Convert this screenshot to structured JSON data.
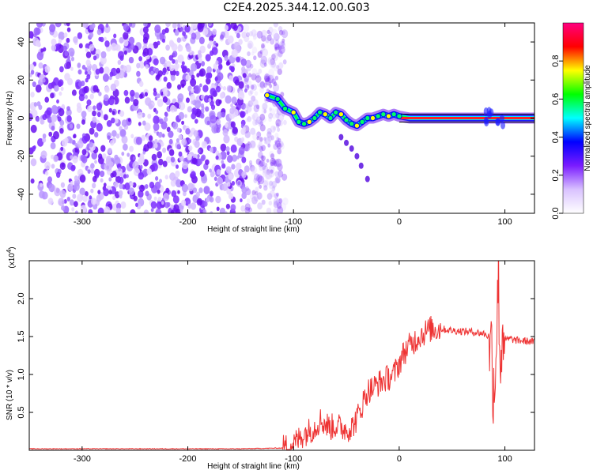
{
  "title": "C2E4.2025.344.12.00.G03",
  "chart_data": [
    {
      "type": "heatmap",
      "xlabel": "Height of straight line (km)",
      "ylabel": "Frequency (Hz)",
      "xlim": [
        -350,
        128
      ],
      "ylim": [
        -50,
        50
      ],
      "x_ticks": [
        -300,
        -200,
        -100,
        0,
        100
      ],
      "x_tick_labels": [
        "-300",
        "-200",
        "-100",
        "0",
        "100"
      ],
      "y_ticks": [
        -40,
        -20,
        0,
        20,
        40
      ],
      "y_tick_labels": [
        "-40",
        "-20",
        "0",
        "20",
        "40"
      ],
      "colorbar": {
        "label": "Normalized spectral amplitude",
        "range": [
          0,
          1
        ],
        "ticks": [
          0.0,
          0.2,
          0.4,
          0.6,
          0.8
        ],
        "tick_labels": [
          "0.0",
          "0.2",
          "0.4",
          "0.6",
          "0.8"
        ],
        "colors": [
          "#ffffff",
          "#d9c2ff",
          "#7a1cff",
          "#0000ff",
          "#00ffff",
          "#00ff00",
          "#ffff00",
          "#ff0000",
          "#ff0080"
        ]
      },
      "noise_region_x": [
        -350,
        -115
      ],
      "main_signal_track": [
        {
          "x": -125,
          "y": 12
        },
        {
          "x": -115,
          "y": 10
        },
        {
          "x": -108,
          "y": 5
        },
        {
          "x": -100,
          "y": 3
        },
        {
          "x": -95,
          "y": -2
        },
        {
          "x": -90,
          "y": -3
        },
        {
          "x": -85,
          "y": -2
        },
        {
          "x": -80,
          "y": 0
        },
        {
          "x": -75,
          "y": 3
        },
        {
          "x": -70,
          "y": 2
        },
        {
          "x": -65,
          "y": 0
        },
        {
          "x": -60,
          "y": 3
        },
        {
          "x": -55,
          "y": 2
        },
        {
          "x": -50,
          "y": -1
        },
        {
          "x": -45,
          "y": -3
        },
        {
          "x": -40,
          "y": -4
        },
        {
          "x": -35,
          "y": -2
        },
        {
          "x": -30,
          "y": 0
        },
        {
          "x": -25,
          "y": 0
        },
        {
          "x": -20,
          "y": 1
        },
        {
          "x": -15,
          "y": 2
        },
        {
          "x": -10,
          "y": 1
        },
        {
          "x": -5,
          "y": 2
        },
        {
          "x": 0,
          "y": 1
        },
        {
          "x": 10,
          "y": 0
        },
        {
          "x": 50,
          "y": 0
        },
        {
          "x": 85,
          "y": 0
        },
        {
          "x": 95,
          "y": 0
        },
        {
          "x": 128,
          "y": 0
        }
      ],
      "secondary_branch": [
        {
          "x": -55,
          "y": -10
        },
        {
          "x": -50,
          "y": -13
        },
        {
          "x": -45,
          "y": -16
        },
        {
          "x": -40,
          "y": -20
        },
        {
          "x": -36,
          "y": -25
        },
        {
          "x": -30,
          "y": -32
        }
      ]
    },
    {
      "type": "line",
      "xlabel": "Height of straight line (km)",
      "ylabel": "SNR (10 * v/v)",
      "y_multiplier": "(x10",
      "y_multiplier_exp": "4",
      "y_multiplier_close": ")",
      "xlim": [
        -350,
        128
      ],
      "ylim": [
        0,
        2.5
      ],
      "x_ticks": [
        -300,
        -200,
        -100,
        0,
        100
      ],
      "x_tick_labels": [
        "-300",
        "-200",
        "-100",
        "0",
        "100"
      ],
      "y_ticks": [
        0.5,
        1.0,
        1.5,
        2.0
      ],
      "y_tick_labels": [
        "0.5",
        "1.0",
        "1.5",
        "2.0"
      ],
      "color": "#ee3333",
      "series": [
        {
          "x": [
            -350,
            -300,
            -250,
            -200,
            -150,
            -110,
            -100,
            -95,
            -90,
            -85,
            -80,
            -75,
            -70,
            -65,
            -60,
            -55,
            -50,
            -45,
            -40,
            -35,
            -30,
            -25,
            -20,
            -15,
            -10,
            -5,
            0,
            5,
            10,
            15,
            20,
            25,
            30,
            40,
            50,
            60,
            70,
            75,
            80,
            85,
            88,
            90,
            92,
            94,
            96,
            98,
            100,
            105,
            110,
            120,
            128
          ],
          "y": [
            0.02,
            0.02,
            0.02,
            0.02,
            0.02,
            0.03,
            0.08,
            0.15,
            0.22,
            0.26,
            0.3,
            0.4,
            0.35,
            0.3,
            0.33,
            0.3,
            0.28,
            0.3,
            0.42,
            0.6,
            0.78,
            0.82,
            0.88,
            0.92,
            0.96,
            1.0,
            1.15,
            1.3,
            1.38,
            1.45,
            1.52,
            1.56,
            1.6,
            1.6,
            1.58,
            1.57,
            1.56,
            1.55,
            1.54,
            1.5,
            1.2,
            0.8,
            1.6,
            2.3,
            1.0,
            1.8,
            1.45,
            1.47,
            1.45,
            1.44,
            1.43
          ]
        }
      ]
    }
  ]
}
